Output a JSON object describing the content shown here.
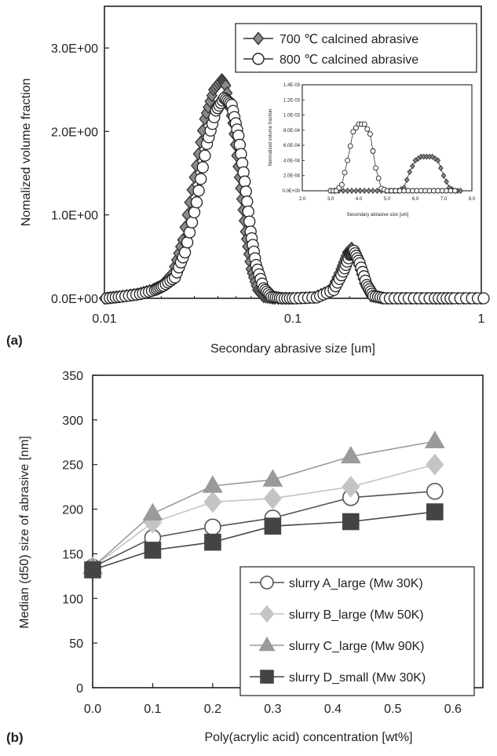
{
  "chart_data": [
    {
      "panel": "(a)",
      "type": "line",
      "xscale": "log",
      "xlabel": "Secondary abrasive size [um]",
      "ylabel": "Nomalized volume fraction",
      "xlim": [
        0.01,
        1
      ],
      "ylim": [
        0,
        3.5
      ],
      "xticks": [
        "0.01",
        "0.1",
        "1"
      ],
      "yticks": [
        "0.0E+00",
        "1.0E+00",
        "2.0E+00",
        "3.0E+00"
      ],
      "legend_position": "top-right",
      "series": [
        {
          "name": "700 ℃ calcined abrasive",
          "marker": "diamond",
          "x": [
            0.01,
            0.012,
            0.015,
            0.018,
            0.02,
            0.023,
            0.026,
            0.03,
            0.034,
            0.038,
            0.042,
            0.044,
            0.048,
            0.052,
            0.056,
            0.06,
            0.065,
            0.07,
            0.08,
            0.1,
            0.13,
            0.16,
            0.18,
            0.195,
            0.205,
            0.22,
            0.24,
            0.26,
            0.3,
            0.4,
            0.55,
            0.7,
            1.0
          ],
          "y": [
            0.0,
            0.02,
            0.05,
            0.1,
            0.15,
            0.3,
            0.7,
            1.45,
            2.15,
            2.5,
            2.62,
            2.55,
            2.1,
            1.45,
            0.8,
            0.35,
            0.1,
            0.02,
            0.0,
            0.0,
            0.01,
            0.1,
            0.35,
            0.55,
            0.6,
            0.45,
            0.18,
            0.03,
            0.0,
            0.0,
            0.0,
            0.0,
            0.0
          ]
        },
        {
          "name": "800 ℃ calcined abrasive",
          "marker": "circle",
          "x": [
            0.01,
            0.012,
            0.015,
            0.018,
            0.02,
            0.023,
            0.026,
            0.03,
            0.034,
            0.038,
            0.042,
            0.046,
            0.05,
            0.054,
            0.058,
            0.062,
            0.068,
            0.075,
            0.085,
            0.1,
            0.13,
            0.16,
            0.18,
            0.195,
            0.205,
            0.22,
            0.24,
            0.26,
            0.3,
            0.4,
            0.55,
            0.7,
            1.0
          ],
          "y": [
            0.0,
            0.02,
            0.05,
            0.1,
            0.15,
            0.25,
            0.55,
            1.15,
            1.85,
            2.25,
            2.4,
            2.32,
            1.95,
            1.4,
            0.8,
            0.4,
            0.12,
            0.02,
            0.0,
            0.0,
            0.01,
            0.1,
            0.32,
            0.52,
            0.57,
            0.42,
            0.16,
            0.03,
            0.0,
            0.0,
            0.0,
            0.0,
            0.0
          ]
        }
      ],
      "inset": {
        "type": "line",
        "xlabel": "Secondary abrasive size [um]",
        "ylabel": "Normalized volume fraction",
        "xlim": [
          2.0,
          8.0
        ],
        "ylim": [
          0,
          0.0014
        ],
        "xticks": [
          "2.0",
          "3.0",
          "4.0",
          "5.0",
          "6.0",
          "7.0",
          "8.0"
        ],
        "yticks": [
          "0.0E+00",
          "2.0E-04",
          "4.0E-04",
          "6.0E-04",
          "8.0E-04",
          "1.0E-03",
          "1.2E-03",
          "1.4E-03"
        ],
        "series": [
          {
            "name": "700 ℃ calcined abrasive",
            "marker": "diamond",
            "x": [
              3.0,
              3.3,
              3.6,
              3.9,
              4.2,
              4.5,
              4.8,
              5.1,
              5.4,
              5.6,
              5.8,
              6.0,
              6.2,
              6.4,
              6.6,
              6.8,
              7.0,
              7.2,
              7.4,
              7.6
            ],
            "y": [
              0,
              0,
              0,
              0,
              0,
              0,
              0,
              0,
              0,
              4e-05,
              0.00025,
              0.0004,
              0.00045,
              0.00045,
              0.00045,
              0.0004,
              0.0002,
              4e-05,
              0,
              0
            ]
          },
          {
            "name": "800 ℃ calcined abrasive",
            "marker": "circle",
            "x": [
              3.0,
              3.2,
              3.4,
              3.6,
              3.8,
              4.0,
              4.2,
              4.4,
              4.6,
              4.8,
              5.0,
              5.3,
              5.6,
              5.9,
              6.2,
              6.5,
              6.8,
              7.1,
              7.4
            ],
            "y": [
              0,
              0,
              8e-05,
              0.0004,
              0.00078,
              0.00088,
              0.00088,
              0.00075,
              0.0003,
              3e-05,
              0,
              0,
              0,
              0,
              0,
              0,
              0,
              0,
              0
            ]
          }
        ]
      }
    },
    {
      "panel": "(b)",
      "type": "line",
      "xlabel": "Poly(acrylic acid) concentration [wt%]",
      "ylabel": "Median (d50) size of abrasive [nm]",
      "xlim": [
        0.0,
        0.65
      ],
      "ylim": [
        0,
        350
      ],
      "xticks": [
        "0.0",
        "0.1",
        "0.2",
        "0.3",
        "0.4",
        "0.5",
        "0.6"
      ],
      "yticks": [
        "0",
        "50",
        "100",
        "150",
        "200",
        "250",
        "300",
        "350"
      ],
      "legend_position": "bottom-right",
      "x": [
        0.0,
        0.1,
        0.2,
        0.3,
        0.43,
        0.57
      ],
      "series": [
        {
          "name": "slurry A_large (Mw 30K)",
          "marker": "circle",
          "color": "#555555",
          "values": [
            135,
            168,
            180,
            190,
            213,
            220
          ]
        },
        {
          "name": "slurry B_large (Mw 50K)",
          "marker": "diamond",
          "color": "#c4c4c4",
          "values": [
            135,
            185,
            208,
            212,
            225,
            250
          ]
        },
        {
          "name": "slurry C_large (Mw 90K)",
          "marker": "triangle",
          "color": "#9a9a9a",
          "values": [
            135,
            195,
            226,
            233,
            259,
            276
          ]
        },
        {
          "name": "slurry D_small (Mw 30K)",
          "marker": "square",
          "color": "#444444",
          "values": [
            132,
            154,
            163,
            181,
            186,
            197
          ]
        }
      ]
    }
  ]
}
